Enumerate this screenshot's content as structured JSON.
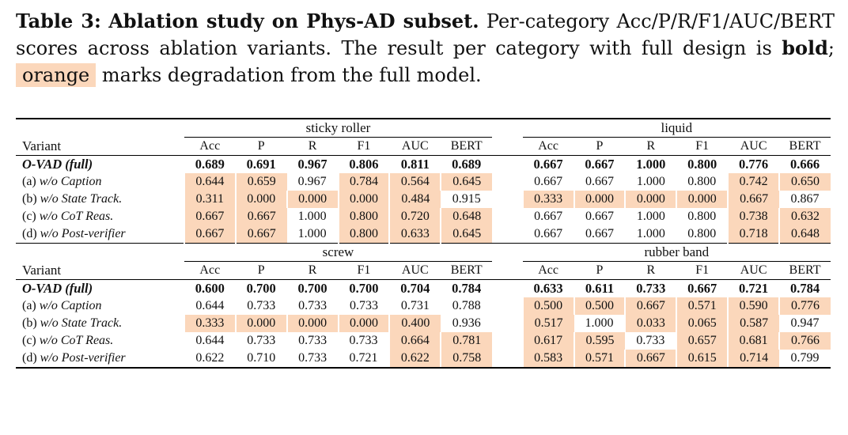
{
  "caption": {
    "label": "Table 3:",
    "title": "Ablation study on Phys-AD subset.",
    "text1": " Per-category Acc/P/R/F1/AUC/BERT scores across ablation variants. The result per category with full design is ",
    "bold_word": "bold",
    "text2": "; ",
    "orange_word": "orange",
    "text3": " marks degradation from the full model."
  },
  "table": {
    "variant_header": "Variant",
    "metrics": [
      "Acc",
      "P",
      "R",
      "F1",
      "AUC",
      "BERT"
    ],
    "blocks": [
      {
        "left_category": "sticky roller",
        "right_category": "liquid",
        "rows": [
          {
            "variant_prefix": "",
            "variant_name": "O-VAD (full)",
            "full": true,
            "left": [
              "0.689",
              "0.691",
              "0.967",
              "0.806",
              "0.811",
              "0.689"
            ],
            "right": [
              "0.667",
              "0.667",
              "1.000",
              "0.800",
              "0.776",
              "0.666"
            ],
            "left_deg": [
              false,
              false,
              false,
              false,
              false,
              false
            ],
            "right_deg": [
              false,
              false,
              false,
              false,
              false,
              false
            ]
          },
          {
            "variant_prefix": "(a) ",
            "variant_name": "w/o Caption",
            "full": false,
            "left": [
              "0.644",
              "0.659",
              "0.967",
              "0.784",
              "0.564",
              "0.645"
            ],
            "right": [
              "0.667",
              "0.667",
              "1.000",
              "0.800",
              "0.742",
              "0.650"
            ],
            "left_deg": [
              true,
              true,
              false,
              true,
              true,
              true
            ],
            "right_deg": [
              false,
              false,
              false,
              false,
              true,
              true
            ]
          },
          {
            "variant_prefix": "(b) ",
            "variant_name": "w/o State Track.",
            "full": false,
            "left": [
              "0.311",
              "0.000",
              "0.000",
              "0.000",
              "0.484",
              "0.915"
            ],
            "right": [
              "0.333",
              "0.000",
              "0.000",
              "0.000",
              "0.667",
              "0.867"
            ],
            "left_deg": [
              true,
              true,
              true,
              true,
              true,
              false
            ],
            "right_deg": [
              true,
              true,
              true,
              true,
              true,
              false
            ]
          },
          {
            "variant_prefix": "(c) ",
            "variant_name": "w/o CoT Reas.",
            "full": false,
            "left": [
              "0.667",
              "0.667",
              "1.000",
              "0.800",
              "0.720",
              "0.648"
            ],
            "right": [
              "0.667",
              "0.667",
              "1.000",
              "0.800",
              "0.738",
              "0.632"
            ],
            "left_deg": [
              true,
              true,
              false,
              true,
              true,
              true
            ],
            "right_deg": [
              false,
              false,
              false,
              false,
              true,
              true
            ]
          },
          {
            "variant_prefix": "(d) ",
            "variant_name": "w/o Post-verifier",
            "full": false,
            "left": [
              "0.667",
              "0.667",
              "1.000",
              "0.800",
              "0.633",
              "0.645"
            ],
            "right": [
              "0.667",
              "0.667",
              "1.000",
              "0.800",
              "0.718",
              "0.648"
            ],
            "left_deg": [
              true,
              true,
              false,
              true,
              true,
              true
            ],
            "right_deg": [
              false,
              false,
              false,
              false,
              true,
              true
            ]
          }
        ]
      },
      {
        "left_category": "screw",
        "right_category": "rubber band",
        "rows": [
          {
            "variant_prefix": "",
            "variant_name": "O-VAD (full)",
            "full": true,
            "left": [
              "0.600",
              "0.700",
              "0.700",
              "0.700",
              "0.704",
              "0.784"
            ],
            "right": [
              "0.633",
              "0.611",
              "0.733",
              "0.667",
              "0.721",
              "0.784"
            ],
            "left_deg": [
              false,
              false,
              false,
              false,
              false,
              false
            ],
            "right_deg": [
              false,
              false,
              false,
              false,
              false,
              false
            ]
          },
          {
            "variant_prefix": "(a) ",
            "variant_name": "w/o Caption",
            "full": false,
            "left": [
              "0.644",
              "0.733",
              "0.733",
              "0.733",
              "0.731",
              "0.788"
            ],
            "right": [
              "0.500",
              "0.500",
              "0.667",
              "0.571",
              "0.590",
              "0.776"
            ],
            "left_deg": [
              false,
              false,
              false,
              false,
              false,
              false
            ],
            "right_deg": [
              true,
              true,
              true,
              true,
              true,
              true
            ]
          },
          {
            "variant_prefix": "(b) ",
            "variant_name": "w/o State Track.",
            "full": false,
            "left": [
              "0.333",
              "0.000",
              "0.000",
              "0.000",
              "0.400",
              "0.936"
            ],
            "right": [
              "0.517",
              "1.000",
              "0.033",
              "0.065",
              "0.587",
              "0.947"
            ],
            "left_deg": [
              true,
              true,
              true,
              true,
              true,
              false
            ],
            "right_deg": [
              true,
              false,
              true,
              true,
              true,
              false
            ]
          },
          {
            "variant_prefix": "(c) ",
            "variant_name": "w/o CoT Reas.",
            "full": false,
            "left": [
              "0.644",
              "0.733",
              "0.733",
              "0.733",
              "0.664",
              "0.781"
            ],
            "right": [
              "0.617",
              "0.595",
              "0.733",
              "0.657",
              "0.681",
              "0.766"
            ],
            "left_deg": [
              false,
              false,
              false,
              false,
              true,
              true
            ],
            "right_deg": [
              true,
              true,
              false,
              true,
              true,
              true
            ]
          },
          {
            "variant_prefix": "(d) ",
            "variant_name": "w/o Post-verifier",
            "full": false,
            "left": [
              "0.622",
              "0.710",
              "0.733",
              "0.721",
              "0.622",
              "0.758"
            ],
            "right": [
              "0.583",
              "0.571",
              "0.667",
              "0.615",
              "0.714",
              "0.799"
            ],
            "left_deg": [
              false,
              false,
              false,
              false,
              true,
              true
            ],
            "right_deg": [
              true,
              true,
              true,
              true,
              true,
              false
            ]
          }
        ]
      }
    ]
  }
}
